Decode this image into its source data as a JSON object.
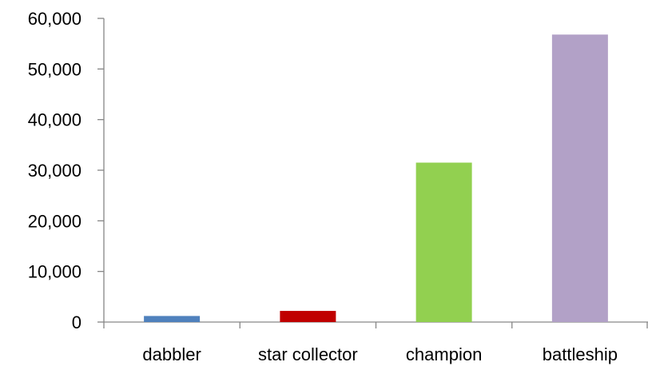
{
  "chart_data": {
    "type": "bar",
    "title": "",
    "xlabel": "",
    "ylabel": "",
    "categories": [
      "dabbler",
      "star collector",
      "champion",
      "battleship"
    ],
    "values": [
      1200,
      2200,
      31500,
      56800
    ],
    "colors": [
      "#4f81bd",
      "#c00000",
      "#92d050",
      "#b2a1c7"
    ],
    "ylim": [
      0,
      60000
    ],
    "yticks": [
      0,
      10000,
      20000,
      30000,
      40000,
      50000,
      60000
    ],
    "ytick_labels": [
      "0",
      "10,000",
      "20,000",
      "30,000",
      "40,000",
      "50,000",
      "60,000"
    ],
    "grid": false,
    "legend": "none"
  }
}
